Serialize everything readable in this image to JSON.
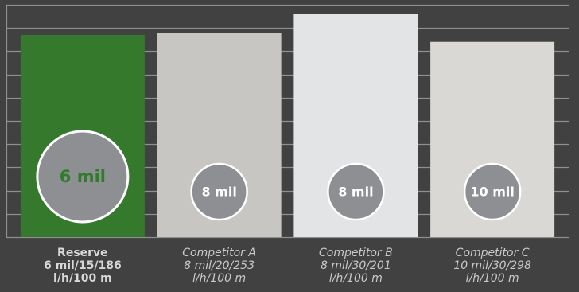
{
  "colors": {
    "background": "#414141",
    "grid": "#8f8f8f",
    "bubble_fill": "#8d8f93",
    "bubble_stroke": "#ffffff",
    "label_primary": "#d8d8d8",
    "label_secondary": "#c9c9c9",
    "highlight_text": "#2f7d2b"
  },
  "chart_data": {
    "type": "bar",
    "ylim": [
      0,
      10
    ],
    "grid": true,
    "categories": [
      {
        "lines": [
          "Reserve",
          "6 mil/15/186",
          "l/h/100 m"
        ],
        "value": 8.7,
        "bubble_label": "6 mil",
        "bar_color": "#357a2c",
        "highlight": true
      },
      {
        "lines": [
          "Competitor A",
          "8 mil/20/253",
          "l/h/100 m"
        ],
        "value": 8.8,
        "bubble_label": "8 mil",
        "bar_color": "#c7c6c2",
        "highlight": false
      },
      {
        "lines": [
          "Competitor B",
          "8 mil/30/201",
          "l/h/100 m"
        ],
        "value": 9.6,
        "bubble_label": "8 mil",
        "bar_color": "#e3e4e6",
        "highlight": false
      },
      {
        "lines": [
          "Competitor C",
          "10 mil/30/298",
          "l/h/100 m"
        ],
        "value": 8.4,
        "bubble_label": "10 mil",
        "bar_color": "#d9d8d4",
        "highlight": false
      }
    ]
  }
}
